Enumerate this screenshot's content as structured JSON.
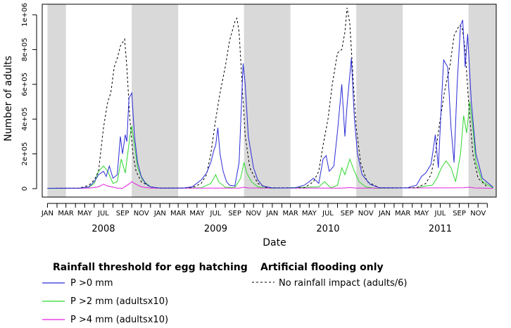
{
  "chart_data": {
    "type": "line",
    "xlabel": "Date",
    "ylabel": "Number of adults",
    "ylim": [
      0,
      1000000
    ],
    "y_ticks": [
      {
        "value": 0,
        "label": "0"
      },
      {
        "value": 200000,
        "label": "2e+05"
      },
      {
        "value": 400000,
        "label": "4e+05"
      },
      {
        "value": 600000,
        "label": "6e+05"
      },
      {
        "value": 800000,
        "label": "8e+05"
      },
      {
        "value": 1000000,
        "label": "1e+06"
      }
    ],
    "x_range_months": [
      "2007-12-15",
      "2011-12-30"
    ],
    "month_tick_labels": [
      "JAN",
      "MAR",
      "MAY",
      "JUL",
      "SEP",
      "NOV",
      "JAN",
      "MAR",
      "MAY",
      "JUL",
      "SEP",
      "NOV",
      "JAN",
      "MAR",
      "MAY",
      "JUL",
      "SEP",
      "NOV",
      "JAN",
      "MAR",
      "MAY",
      "JUL",
      "SEP",
      "NOV"
    ],
    "years": [
      "2008",
      "2009",
      "2010",
      "2011"
    ],
    "shaded_periods": [
      {
        "start": "2008-01-01",
        "end": "2008-03-01"
      },
      {
        "start": "2008-10-01",
        "end": "2009-03-01"
      },
      {
        "start": "2009-10-01",
        "end": "2010-03-01"
      },
      {
        "start": "2010-10-01",
        "end": "2011-03-01"
      },
      {
        "start": "2011-10-01",
        "end": "2011-12-31"
      }
    ],
    "shaded_color": "#d9d9d9",
    "series": [
      {
        "name": "P >0 mm",
        "color": "#2b2bd6",
        "style": "solid",
        "points": [
          [
            "2008-01-01",
            2000
          ],
          [
            "2008-04-15",
            3000
          ],
          [
            "2008-05-15",
            10000
          ],
          [
            "2008-06-01",
            40000
          ],
          [
            "2008-06-15",
            80000
          ],
          [
            "2008-07-01",
            100000
          ],
          [
            "2008-07-10",
            70000
          ],
          [
            "2008-07-20",
            130000
          ],
          [
            "2008-08-01",
            60000
          ],
          [
            "2008-08-15",
            80000
          ],
          [
            "2008-08-25",
            300000
          ],
          [
            "2008-09-01",
            200000
          ],
          [
            "2008-09-10",
            310000
          ],
          [
            "2008-09-15",
            270000
          ],
          [
            "2008-09-22",
            520000
          ],
          [
            "2008-10-01",
            550000
          ],
          [
            "2008-10-10",
            300000
          ],
          [
            "2008-10-20",
            150000
          ],
          [
            "2008-11-01",
            70000
          ],
          [
            "2008-11-15",
            30000
          ],
          [
            "2008-12-01",
            10000
          ],
          [
            "2009-01-01",
            3000
          ],
          [
            "2009-03-15",
            3000
          ],
          [
            "2009-04-15",
            10000
          ],
          [
            "2009-05-15",
            50000
          ],
          [
            "2009-06-01",
            90000
          ],
          [
            "2009-06-15",
            150000
          ],
          [
            "2009-06-25",
            220000
          ],
          [
            "2009-07-01",
            250000
          ],
          [
            "2009-07-08",
            350000
          ],
          [
            "2009-07-15",
            200000
          ],
          [
            "2009-07-25",
            100000
          ],
          [
            "2009-08-05",
            40000
          ],
          [
            "2009-08-15",
            20000
          ],
          [
            "2009-09-01",
            15000
          ],
          [
            "2009-09-15",
            150000
          ],
          [
            "2009-09-28",
            720000
          ],
          [
            "2009-10-05",
            600000
          ],
          [
            "2009-10-15",
            300000
          ],
          [
            "2009-11-01",
            120000
          ],
          [
            "2009-11-15",
            50000
          ],
          [
            "2009-12-01",
            15000
          ],
          [
            "2010-01-01",
            4000
          ],
          [
            "2010-03-15",
            4000
          ],
          [
            "2010-04-15",
            20000
          ],
          [
            "2010-05-01",
            40000
          ],
          [
            "2010-05-15",
            60000
          ],
          [
            "2010-06-01",
            30000
          ],
          [
            "2010-06-15",
            170000
          ],
          [
            "2010-06-25",
            190000
          ],
          [
            "2010-07-05",
            100000
          ],
          [
            "2010-07-20",
            130000
          ],
          [
            "2010-08-01",
            330000
          ],
          [
            "2010-08-15",
            600000
          ],
          [
            "2010-08-25",
            300000
          ],
          [
            "2010-09-01",
            480000
          ],
          [
            "2010-09-15",
            750000
          ],
          [
            "2010-09-25",
            400000
          ],
          [
            "2010-10-05",
            200000
          ],
          [
            "2010-10-20",
            80000
          ],
          [
            "2010-11-15",
            25000
          ],
          [
            "2010-12-15",
            5000
          ],
          [
            "2011-03-15",
            4000
          ],
          [
            "2011-04-15",
            20000
          ],
          [
            "2011-05-01",
            70000
          ],
          [
            "2011-05-15",
            90000
          ],
          [
            "2011-06-01",
            140000
          ],
          [
            "2011-06-15",
            310000
          ],
          [
            "2011-06-25",
            120000
          ],
          [
            "2011-07-05",
            500000
          ],
          [
            "2011-07-12",
            740000
          ],
          [
            "2011-07-25",
            700000
          ],
          [
            "2011-08-05",
            350000
          ],
          [
            "2011-08-15",
            150000
          ],
          [
            "2011-08-25",
            600000
          ],
          [
            "2011-09-05",
            940000
          ],
          [
            "2011-09-12",
            970000
          ],
          [
            "2011-09-20",
            700000
          ],
          [
            "2011-09-28",
            890000
          ],
          [
            "2011-10-10",
            500000
          ],
          [
            "2011-10-25",
            200000
          ],
          [
            "2011-11-15",
            60000
          ],
          [
            "2011-12-20",
            8000
          ]
        ]
      },
      {
        "name": "P >2 mm (adultsx10)",
        "color": "#2fd82f",
        "style": "solid",
        "points": [
          [
            "2008-01-01",
            1000
          ],
          [
            "2008-04-15",
            2000
          ],
          [
            "2008-05-15",
            8000
          ],
          [
            "2008-06-01",
            30000
          ],
          [
            "2008-06-15",
            100000
          ],
          [
            "2008-07-01",
            130000
          ],
          [
            "2008-07-15",
            100000
          ],
          [
            "2008-08-01",
            30000
          ],
          [
            "2008-08-15",
            40000
          ],
          [
            "2008-08-28",
            170000
          ],
          [
            "2008-09-10",
            90000
          ],
          [
            "2008-09-25",
            300000
          ],
          [
            "2008-10-01",
            360000
          ],
          [
            "2008-10-10",
            250000
          ],
          [
            "2008-10-20",
            120000
          ],
          [
            "2008-11-05",
            50000
          ],
          [
            "2008-12-01",
            10000
          ],
          [
            "2009-01-01",
            2000
          ],
          [
            "2009-05-15",
            5000
          ],
          [
            "2009-06-15",
            30000
          ],
          [
            "2009-07-01",
            80000
          ],
          [
            "2009-07-10",
            40000
          ],
          [
            "2009-08-01",
            8000
          ],
          [
            "2009-09-01",
            5000
          ],
          [
            "2009-09-20",
            60000
          ],
          [
            "2009-10-01",
            150000
          ],
          [
            "2009-10-10",
            90000
          ],
          [
            "2009-10-25",
            40000
          ],
          [
            "2009-11-15",
            10000
          ],
          [
            "2010-01-01",
            2000
          ],
          [
            "2010-06-01",
            10000
          ],
          [
            "2010-06-20",
            40000
          ],
          [
            "2010-07-10",
            5000
          ],
          [
            "2010-08-01",
            20000
          ],
          [
            "2010-08-15",
            120000
          ],
          [
            "2010-08-25",
            80000
          ],
          [
            "2010-09-10",
            170000
          ],
          [
            "2010-09-25",
            100000
          ],
          [
            "2010-10-10",
            40000
          ],
          [
            "2010-11-01",
            10000
          ],
          [
            "2010-12-01",
            2000
          ],
          [
            "2011-04-15",
            5000
          ],
          [
            "2011-05-15",
            15000
          ],
          [
            "2011-06-05",
            20000
          ],
          [
            "2011-06-20",
            60000
          ],
          [
            "2011-07-05",
            120000
          ],
          [
            "2011-07-20",
            160000
          ],
          [
            "2011-08-05",
            120000
          ],
          [
            "2011-08-20",
            40000
          ],
          [
            "2011-09-05",
            200000
          ],
          [
            "2011-09-15",
            420000
          ],
          [
            "2011-09-25",
            320000
          ],
          [
            "2011-10-05",
            500000
          ],
          [
            "2011-10-15",
            350000
          ],
          [
            "2011-10-25",
            150000
          ],
          [
            "2011-11-15",
            40000
          ],
          [
            "2011-12-20",
            5000
          ]
        ]
      },
      {
        "name": "P >4 mm (adultsx10)",
        "color": "#e020e0",
        "style": "solid",
        "points": [
          [
            "2008-01-01",
            2000
          ],
          [
            "2008-05-15",
            3000
          ],
          [
            "2008-06-15",
            10000
          ],
          [
            "2008-07-01",
            25000
          ],
          [
            "2008-07-15",
            15000
          ],
          [
            "2008-08-15",
            3000
          ],
          [
            "2008-09-01",
            2000
          ],
          [
            "2008-09-25",
            30000
          ],
          [
            "2008-10-01",
            40000
          ],
          [
            "2008-10-15",
            25000
          ],
          [
            "2008-11-01",
            10000
          ],
          [
            "2008-12-01",
            3000
          ],
          [
            "2009-09-15",
            3000
          ],
          [
            "2009-10-01",
            8000
          ],
          [
            "2009-10-15",
            4000
          ],
          [
            "2010-08-15",
            3000
          ],
          [
            "2010-09-10",
            6000
          ],
          [
            "2010-10-01",
            3000
          ],
          [
            "2011-09-15",
            5000
          ],
          [
            "2011-10-05",
            8000
          ],
          [
            "2011-10-20",
            4000
          ],
          [
            "2011-12-20",
            2000
          ]
        ]
      },
      {
        "name": "No rainfall impact (adults/6)",
        "color": "#000000",
        "style": "dashed",
        "points": [
          [
            "2008-01-01",
            2000
          ],
          [
            "2008-04-15",
            3000
          ],
          [
            "2008-05-15",
            20000
          ],
          [
            "2008-06-01",
            50000
          ],
          [
            "2008-06-15",
            100000
          ],
          [
            "2008-07-01",
            350000
          ],
          [
            "2008-07-15",
            500000
          ],
          [
            "2008-07-25",
            550000
          ],
          [
            "2008-08-05",
            700000
          ],
          [
            "2008-08-15",
            750000
          ],
          [
            "2008-08-25",
            820000
          ],
          [
            "2008-09-01",
            840000
          ],
          [
            "2008-09-08",
            860000
          ],
          [
            "2008-09-15",
            700000
          ],
          [
            "2008-09-25",
            400000
          ],
          [
            "2008-10-05",
            200000
          ],
          [
            "2008-10-15",
            100000
          ],
          [
            "2008-11-01",
            40000
          ],
          [
            "2008-12-01",
            10000
          ],
          [
            "2009-01-01",
            3000
          ],
          [
            "2009-04-15",
            5000
          ],
          [
            "2009-05-15",
            30000
          ],
          [
            "2009-06-01",
            80000
          ],
          [
            "2009-06-15",
            200000
          ],
          [
            "2009-07-01",
            400000
          ],
          [
            "2009-07-15",
            550000
          ],
          [
            "2009-08-01",
            700000
          ],
          [
            "2009-08-15",
            850000
          ],
          [
            "2009-09-01",
            960000
          ],
          [
            "2009-09-08",
            980000
          ],
          [
            "2009-09-15",
            900000
          ],
          [
            "2009-09-25",
            600000
          ],
          [
            "2009-10-05",
            300000
          ],
          [
            "2009-10-20",
            120000
          ],
          [
            "2009-11-15",
            30000
          ],
          [
            "2009-12-15",
            5000
          ],
          [
            "2010-04-15",
            5000
          ],
          [
            "2010-05-15",
            40000
          ],
          [
            "2010-06-01",
            100000
          ],
          [
            "2010-06-15",
            250000
          ],
          [
            "2010-07-01",
            400000
          ],
          [
            "2010-07-15",
            600000
          ],
          [
            "2010-08-01",
            780000
          ],
          [
            "2010-08-15",
            800000
          ],
          [
            "2010-08-25",
            900000
          ],
          [
            "2010-09-01",
            1040000
          ],
          [
            "2010-09-10",
            950000
          ],
          [
            "2010-09-20",
            650000
          ],
          [
            "2010-10-01",
            350000
          ],
          [
            "2010-10-15",
            150000
          ],
          [
            "2010-11-05",
            40000
          ],
          [
            "2010-12-15",
            5000
          ],
          [
            "2011-04-15",
            5000
          ],
          [
            "2011-05-15",
            30000
          ],
          [
            "2011-06-01",
            80000
          ],
          [
            "2011-06-15",
            200000
          ],
          [
            "2011-07-01",
            400000
          ],
          [
            "2011-07-15",
            560000
          ],
          [
            "2011-08-01",
            700000
          ],
          [
            "2011-08-15",
            880000
          ],
          [
            "2011-09-01",
            940000
          ],
          [
            "2011-09-10",
            930000
          ],
          [
            "2011-09-20",
            800000
          ],
          [
            "2011-10-01",
            500000
          ],
          [
            "2011-10-15",
            200000
          ],
          [
            "2011-11-01",
            60000
          ],
          [
            "2011-12-01",
            10000
          ]
        ]
      }
    ]
  },
  "legend": {
    "left_title": "Rainfall threshold for egg hatching",
    "right_title": "Artificial flooding only",
    "items": [
      {
        "label": "P >0 mm",
        "color": "#2b2bd6",
        "style": "solid"
      },
      {
        "label": "P >2 mm (adultsx10)",
        "color": "#2fd82f",
        "style": "solid"
      },
      {
        "label": "P >4 mm (adultsx10)",
        "color": "#e020e0",
        "style": "solid"
      },
      {
        "label": "No rainfall impact (adults/6)",
        "color": "#000000",
        "style": "dashed"
      }
    ]
  }
}
